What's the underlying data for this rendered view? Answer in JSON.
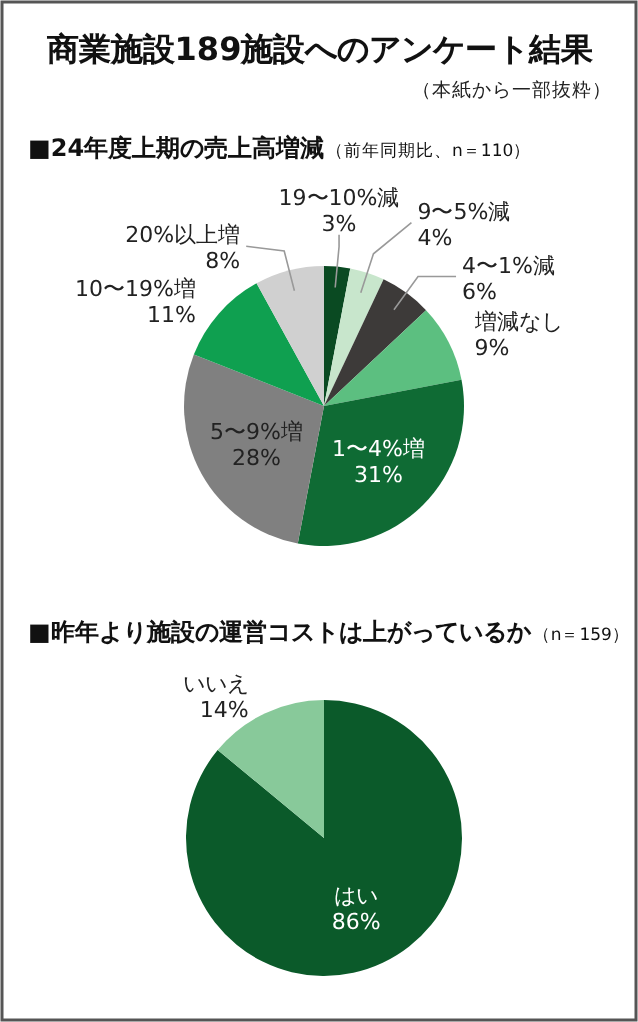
{
  "chart_data": [
    {
      "type": "pie",
      "title": "■24年度上期の売上高増減",
      "subtitle": "（前年同期比、n＝110）",
      "annotations": [
        "商業施設189施設へのアンケート結果",
        "（本紙から一部抜粋）"
      ],
      "categories": [
        "19〜10%減",
        "9〜5%減",
        "4〜1%減",
        "増減なし",
        "1〜4%増",
        "5〜9%増",
        "10〜19%増",
        "20%以上増"
      ],
      "values": [
        3,
        4,
        6,
        9,
        31,
        28,
        11,
        8
      ],
      "value_labels": [
        "3%",
        "4%",
        "6%",
        "9%",
        "31%",
        "28%",
        "11%",
        "8%"
      ],
      "colors": [
        "#0a4a22",
        "#c8e6cc",
        "#3d3a39",
        "#5cbf80",
        "#0f6b34",
        "#808080",
        "#0fa050",
        "#d0d0d0"
      ]
    },
    {
      "type": "pie",
      "title": "■昨年より施設の運営コストは上がっているか",
      "subtitle": "（n＝159）",
      "categories": [
        "はい",
        "いいえ"
      ],
      "values": [
        86,
        14
      ],
      "value_labels": [
        "86%",
        "14%"
      ],
      "colors": [
        "#0b5a2a",
        "#88c99a"
      ]
    }
  ]
}
